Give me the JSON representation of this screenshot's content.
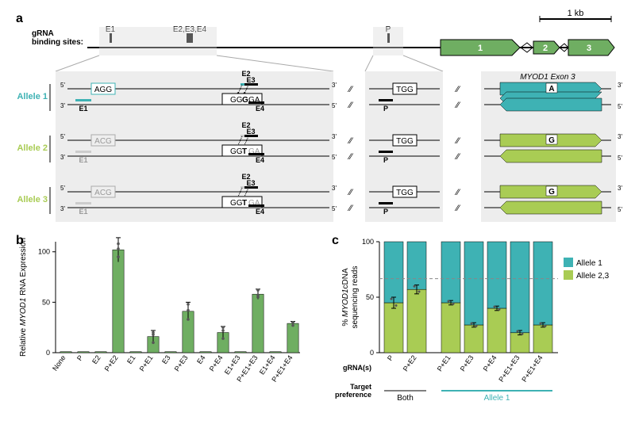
{
  "panel_a": {
    "label": "a",
    "scale_bar_label": "1 kb",
    "gRNA_label": "gRNA\nbinding sites:",
    "tick_labels": [
      "E1",
      "E2,E3,E4",
      "P"
    ],
    "exons": [
      "1",
      "2",
      "3"
    ],
    "exon_color": "#6fae62",
    "allele1": {
      "name": "Allele 1",
      "color": "#3eb2b4",
      "e1_pam": "AGG",
      "e1_label": "E1",
      "center_seq": "GGGGA",
      "center_labels": [
        "E2",
        "E3",
        "E4"
      ],
      "p_pam": "TGG",
      "p_label": "P",
      "exon3_label": "MYOD1 Exon 3",
      "exon3_nt": "A"
    },
    "allele2": {
      "name": "Allele 2",
      "color": "#a9cc54",
      "e1_pam": "ACG",
      "e1_label": "E1",
      "center_seq": "GGTGA",
      "center_labels": [
        "E2",
        "E3",
        "E4"
      ],
      "p_pam": "TGG",
      "p_label": "P",
      "exon3_nt": "G"
    },
    "allele3": {
      "name": "Allele 3",
      "color": "#a9cc54",
      "e1_pam": "ACG",
      "e1_label": "E1",
      "center_seq": "GGTGA",
      "center_labels": [
        "E2",
        "E3",
        "E4"
      ],
      "p_pam": "TGG",
      "p_label": "P",
      "exon3_nt": "G"
    }
  },
  "panel_b": {
    "label": "b",
    "ylabel": "Relative MYOD1 RNA Expression",
    "ylim": [
      0,
      110
    ],
    "ytick_step": 50,
    "bar_color": "#6fae62",
    "categories": [
      "None",
      "P",
      "E2",
      "P+E2",
      "E1",
      "P+E1",
      "E3",
      "P+E3",
      "E4",
      "P+E4",
      "E1+E3",
      "P+E1+E3",
      "E1+E4",
      "P+E1+E4"
    ],
    "values": [
      1,
      1,
      1,
      102,
      1,
      16,
      1,
      41,
      1,
      20,
      1,
      58,
      1,
      29
    ],
    "errors": [
      0,
      0,
      0,
      12,
      0,
      6,
      0,
      9,
      0,
      6,
      0,
      5,
      0,
      2
    ],
    "points": [
      [],
      [],
      [],
      [
        108,
        95,
        103
      ],
      [],
      [
        10,
        18,
        20
      ],
      [],
      [
        33,
        42,
        48
      ],
      [],
      [
        14,
        22,
        25
      ],
      [],
      [
        55,
        62,
        57
      ],
      [],
      [
        27,
        30,
        30
      ]
    ]
  },
  "panel_c": {
    "label": "c",
    "ylabel": "% MYOD1 cDNA\nsequencing reads",
    "ylim": [
      0,
      100
    ],
    "ytick_step": 50,
    "legend": [
      {
        "label": "Allele 1",
        "color": "#3eb2b4"
      },
      {
        "label": "Allele 2,3",
        "color": "#a9cc54"
      }
    ],
    "dashed_line_y": 66.7,
    "categories": [
      "P",
      "P+E2",
      "P+E1",
      "P+E3",
      "P+E4",
      "P+E1+E3",
      "P+E1+E4"
    ],
    "allele23_pct": [
      45,
      57,
      45,
      25,
      40,
      18,
      25
    ],
    "errors": [
      5,
      4,
      2,
      2,
      2,
      2,
      2
    ],
    "group_labels": {
      "both": "Both",
      "allele1": "Allele 1"
    },
    "axis_labels": [
      "gRNA(s)",
      "Target\npreference"
    ]
  }
}
